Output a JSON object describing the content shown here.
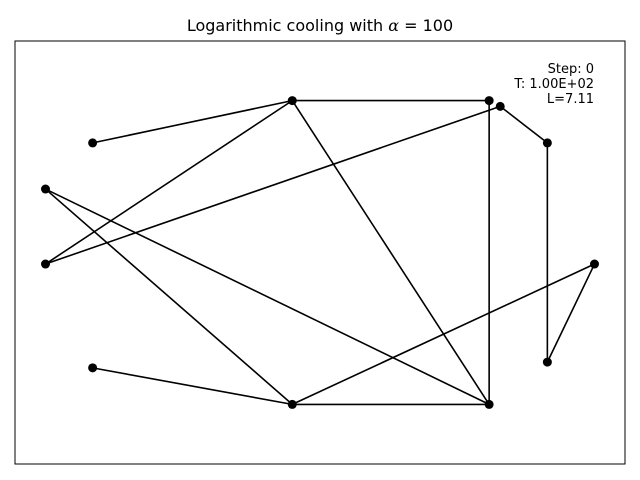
{
  "chart_data": {
    "type": "line",
    "title_prefix": "Logarithmic cooling with ",
    "title_symbol": "α",
    "title_suffix": " = 100",
    "xlabel": "",
    "ylabel": "",
    "grid": false,
    "xlim": [
      -1.1,
      1.1
    ],
    "ylim": [
      -1.1,
      1.1
    ],
    "annotations": {
      "step": "Step: 0",
      "temperature": "T: 1.00E+02",
      "length": "L=7.11"
    },
    "line_color": "#000000",
    "marker_color": "#000000",
    "tour": [
      {
        "x": -0.82,
        "y": 0.57
      },
      {
        "x": -0.1,
        "y": 0.79
      },
      {
        "x": 0.61,
        "y": 0.79
      },
      {
        "x": 0.61,
        "y": -0.79
      },
      {
        "x": -0.1,
        "y": -0.79
      },
      {
        "x": 0.99,
        "y": -0.06
      },
      {
        "x": 0.82,
        "y": -0.57
      },
      {
        "x": 0.82,
        "y": 0.57
      },
      {
        "x": 0.65,
        "y": 0.76
      },
      {
        "x": -0.99,
        "y": -0.06
      },
      {
        "x": -0.1,
        "y": 0.79
      },
      {
        "x": 0.61,
        "y": -0.79
      },
      {
        "x": -0.99,
        "y": 0.33
      },
      {
        "x": -0.1,
        "y": -0.79
      },
      {
        "x": -0.82,
        "y": -0.6
      }
    ]
  }
}
